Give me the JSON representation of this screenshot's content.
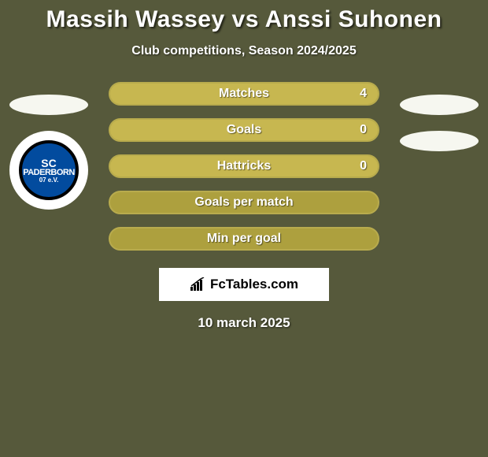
{
  "background_color": "#56593b",
  "title": {
    "text": "Massih Wassey vs Anssi Suhonen",
    "color": "#ffffff",
    "fontsize": 30,
    "fontweight": 900
  },
  "subtitle": {
    "text": "Club competitions, Season 2024/2025",
    "color": "#ffffff",
    "fontsize": 16,
    "fontweight": 700
  },
  "left_player": {
    "badge_ellipse_color": "#f6f7f0",
    "club_name_line1": "SC",
    "club_name_line2": "PADERBORN",
    "club_name_line3": "07 e.V.",
    "club_primary": "#024b9e",
    "club_border": "#000000"
  },
  "right_player": {
    "badge_ellipse_color": "#f6f7f0"
  },
  "stats": {
    "bar_bg_color": "#ada03e",
    "bar_fill_color": "#c7b750",
    "bar_border_color": "#b8ab4d",
    "label_fontsize": 16,
    "value_fontsize": 16,
    "rows": [
      {
        "label": "Matches",
        "value": "4",
        "fill_pct": 100
      },
      {
        "label": "Goals",
        "value": "0",
        "fill_pct": 100
      },
      {
        "label": "Hattricks",
        "value": "0",
        "fill_pct": 100
      },
      {
        "label": "Goals per match",
        "value": "",
        "fill_pct": 0
      },
      {
        "label": "Min per goal",
        "value": "",
        "fill_pct": 0
      }
    ]
  },
  "watermark": {
    "text": "FcTables.com",
    "fontsize": 17,
    "box_bg": "#ffffff",
    "icon_color": "#000000"
  },
  "date": {
    "text": "10 march 2025",
    "color": "#ffffff",
    "fontsize": 17,
    "fontweight": 800
  }
}
